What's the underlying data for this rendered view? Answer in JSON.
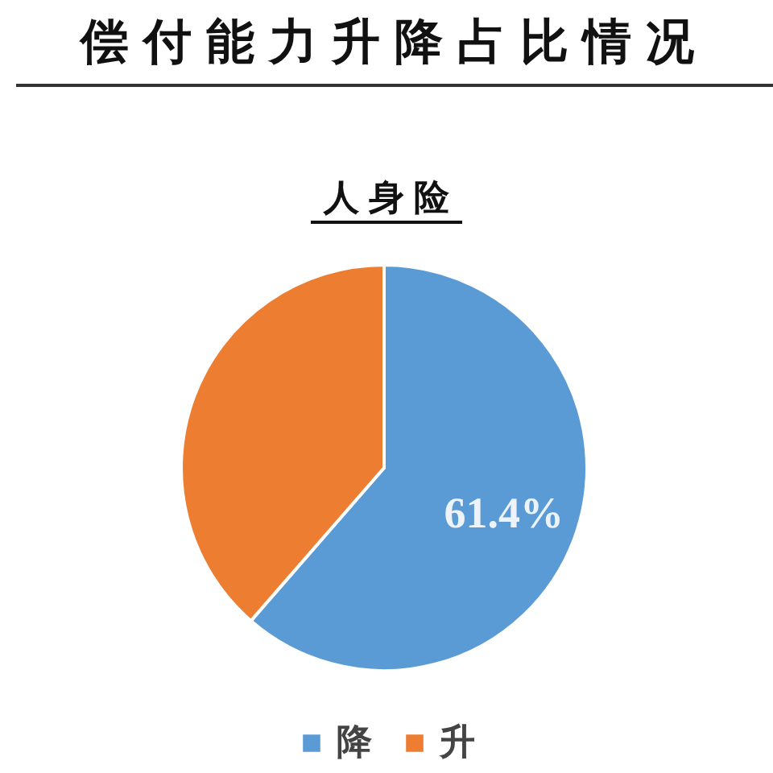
{
  "chart_data": {
    "type": "pie",
    "title": "偿付能力升降占比情况",
    "subtitle": "人身险",
    "categories": [
      "降",
      "升"
    ],
    "values": [
      61.4,
      38.6
    ],
    "colors": [
      "#5b9bd5",
      "#ed7d31"
    ],
    "value_labels": [
      "61.4%",
      null
    ],
    "legend": "bottom"
  }
}
